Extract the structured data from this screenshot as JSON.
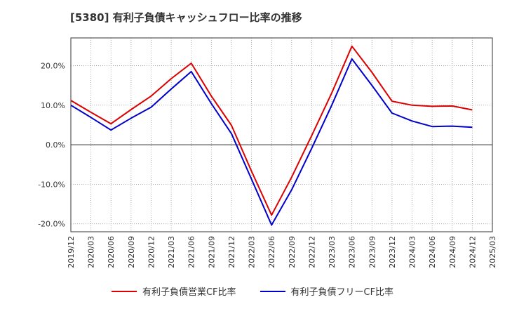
{
  "title": "[5380]  有利子負債キャッシュフロー比率の推移",
  "colors": {
    "series1": "#dd0000",
    "series2": "#0000cc"
  },
  "chart_data": {
    "type": "line",
    "title": "[5380]  有利子負債キャッシュフロー比率の推移",
    "xlabel": "",
    "ylabel": "",
    "x_ticks": [
      "2019/12",
      "2020/03",
      "2020/06",
      "2020/09",
      "2020/12",
      "2021/03",
      "2021/06",
      "2021/09",
      "2021/12",
      "2022/03",
      "2022/06",
      "2022/09",
      "2022/12",
      "2023/03",
      "2023/06",
      "2023/09",
      "2023/12",
      "2024/03",
      "2024/06",
      "2024/09",
      "2024/12",
      "2025/03"
    ],
    "y_ticks": [
      20,
      10,
      0,
      -10,
      -20
    ],
    "y_tick_labels": [
      "20.0%",
      "10.0%",
      "0.0%",
      "-10.0%",
      "-20.0%"
    ],
    "ylim": [
      -22,
      27
    ],
    "grid": true,
    "legend_position": "bottom",
    "series": [
      {
        "name": "有利子負債営業CF比率",
        "x": [
          "2019/12",
          "2020/03",
          "2020/06",
          "2020/09",
          "2020/12",
          "2021/03",
          "2021/06",
          "2021/09",
          "2021/12",
          "2022/03",
          "2022/06",
          "2022/09",
          "2022/12",
          "2023/03",
          "2023/06",
          "2023/09",
          "2023/12",
          "2024/03",
          "2024/06",
          "2024/09",
          "2024/12"
        ],
        "values": [
          11.2,
          8.2,
          5.3,
          8.9,
          12.3,
          16.7,
          20.6,
          12.3,
          4.9,
          -6.7,
          -17.8,
          -8.2,
          2.3,
          13.1,
          24.9,
          18.3,
          11.0,
          10.0,
          9.7,
          9.8,
          8.8
        ]
      },
      {
        "name": "有利子負債フリーCF比率",
        "x": [
          "2019/12",
          "2020/03",
          "2020/06",
          "2020/09",
          "2020/12",
          "2021/03",
          "2021/06",
          "2021/09",
          "2021/12",
          "2022/03",
          "2022/06",
          "2022/09",
          "2022/12",
          "2023/03",
          "2023/06",
          "2023/09",
          "2023/12",
          "2024/03",
          "2024/06",
          "2024/09",
          "2024/12"
        ],
        "values": [
          10.0,
          6.9,
          3.7,
          6.7,
          9.5,
          14.1,
          18.5,
          10.4,
          2.8,
          -8.7,
          -20.3,
          -11.4,
          -0.9,
          10.0,
          21.7,
          15.0,
          8.0,
          6.0,
          4.6,
          4.7,
          4.4
        ]
      }
    ]
  }
}
